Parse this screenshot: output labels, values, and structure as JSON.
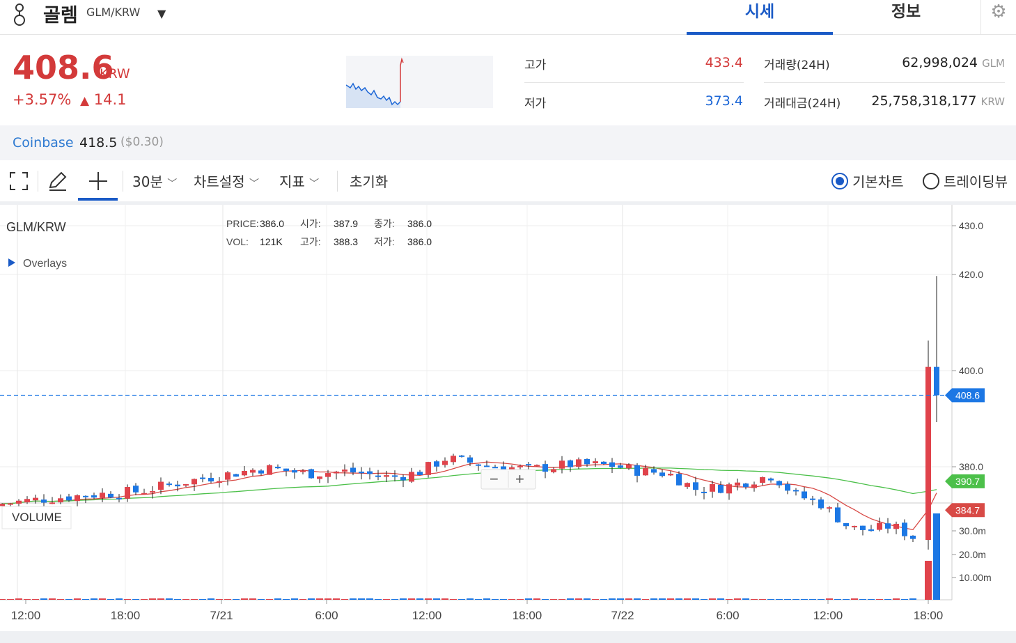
{
  "header": {
    "coin_name": "골렘",
    "pair": "GLM/KRW",
    "tabs": [
      {
        "label": "시세",
        "active": true
      },
      {
        "label": "정보",
        "active": false
      }
    ]
  },
  "summary": {
    "price": "408.6",
    "price_unit": "KRW",
    "change_pct": "+3.57%",
    "change_abs": "14.1",
    "high_label": "고가",
    "high": "433.4",
    "low_label": "저가",
    "low": "373.4",
    "volume_label": "거래량(24H)",
    "volume": "62,998,024",
    "volume_unit": "GLM",
    "amount_label": "거래대금(24H)",
    "amount": "25,758,318,177",
    "amount_unit": "KRW",
    "colors": {
      "up": "#d33a3a",
      "down": "#1c66d6",
      "accent": "#1a5ac6"
    }
  },
  "exchange": {
    "name": "Coinbase",
    "price": "418.5",
    "usd": "($0.30)"
  },
  "toolbar": {
    "interval": "30분",
    "chart_settings": "차트설정",
    "indicators": "지표",
    "reset": "초기화",
    "basic_chart": "기본차트",
    "tradingview": "트레이딩뷰",
    "selected_view": "기본차트"
  },
  "chart_data": {
    "type": "candlestick",
    "symbol": "GLM/KRW",
    "overlays_label": "Overlays",
    "volume_label": "VOLUME",
    "ohlc": {
      "price_label": "PRICE:",
      "price": "386.0",
      "open_label": "시가:",
      "open": "387.9",
      "close_label": "종가:",
      "close": "386.0",
      "vol_label": "VOL:",
      "vol": "121K",
      "high_label": "고가:",
      "high": "388.3",
      "low_label": "저가:",
      "low": "386.0"
    },
    "y_ticks": [
      "430.0",
      "420.0",
      "400.0",
      "380.0"
    ],
    "volume_ticks": [
      "30.0m",
      "20.0m",
      "10.00m"
    ],
    "x_ticks": [
      "12:00",
      "18:00",
      "7/21",
      "6:00",
      "12:00",
      "18:00",
      "7/22",
      "6:00",
      "12:00",
      "18:00"
    ],
    "ylim": [
      373,
      434
    ],
    "current_price": "408.6",
    "ma_labels": {
      "ma_long": "390.7",
      "ma_short": "384.7"
    },
    "series_colors": {
      "up": "#e0434b",
      "down": "#1c77e4",
      "ma_short": "#d84a46",
      "ma_long": "#4cc04a"
    }
  }
}
